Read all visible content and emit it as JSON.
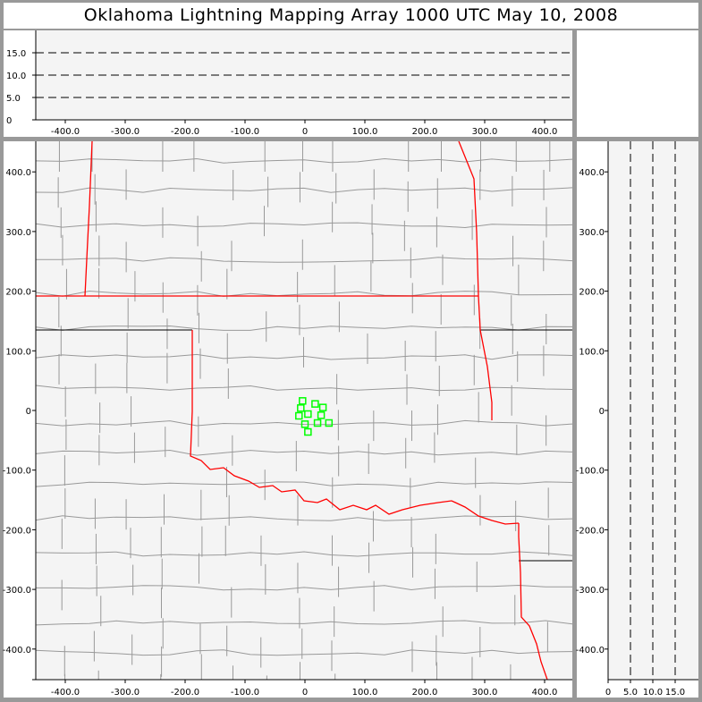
{
  "title": "Oklahoma Lightning Mapping Array   1000 UTC  May 10, 2008",
  "colors": {
    "background": "#999999",
    "plot_bg": "#f4f4f4",
    "state_border": "#ff0000",
    "county_border": "#999999",
    "source_marker": "#00ff00",
    "gridline": "#000000"
  },
  "chart_data": [
    {
      "type": "scatter",
      "panel": "plan-view",
      "x_ticks": [
        "-400.0",
        "-300.0",
        "-200.0",
        "-100.0",
        "0",
        "100.0",
        "200.0",
        "300.0",
        "400.0"
      ],
      "y_ticks": [
        "400.0",
        "300.0",
        "200.0",
        "100.0",
        "0",
        "-100.0",
        "-200.0",
        "-300.0",
        "-400.0"
      ],
      "xlim": [
        -450,
        445
      ],
      "ylim": [
        -450,
        450
      ],
      "marker": "hollow-square",
      "points": [
        {
          "x": -4,
          "y": 16
        },
        {
          "x": -7,
          "y": 4
        },
        {
          "x": 17,
          "y": 11
        },
        {
          "x": 30,
          "y": 5
        },
        {
          "x": 5,
          "y": -6
        },
        {
          "x": -10,
          "y": -9
        },
        {
          "x": 27,
          "y": -8
        },
        {
          "x": 0,
          "y": -23
        },
        {
          "x": 21,
          "y": -21
        },
        {
          "x": 40,
          "y": -21
        },
        {
          "x": 5,
          "y": -36
        }
      ]
    },
    {
      "type": "scatter",
      "panel": "east-west-altitude",
      "x_ticks": [
        "-400.0",
        "-300.0",
        "-200.0",
        "-100.0",
        "0",
        "100.0",
        "200.0",
        "300.0",
        "400.0"
      ],
      "y_ticks": [
        "15.0",
        "10.0",
        "5.0",
        "0"
      ],
      "ylim": [
        0,
        20
      ],
      "dashed_gridlines": [
        5,
        10,
        15
      ],
      "points": []
    },
    {
      "type": "scatter",
      "panel": "north-south-altitude",
      "x_ticks": [
        "0",
        "5.0",
        "10.0",
        "15.0"
      ],
      "y_ticks": [
        "400.0",
        "300.0",
        "200.0",
        "100.0",
        "0",
        "-100.0",
        "-200.0",
        "-300.0",
        "-400.0"
      ],
      "xlim": [
        0,
        20
      ],
      "dashed_gridlines": [
        5,
        10,
        15
      ],
      "points": []
    }
  ]
}
